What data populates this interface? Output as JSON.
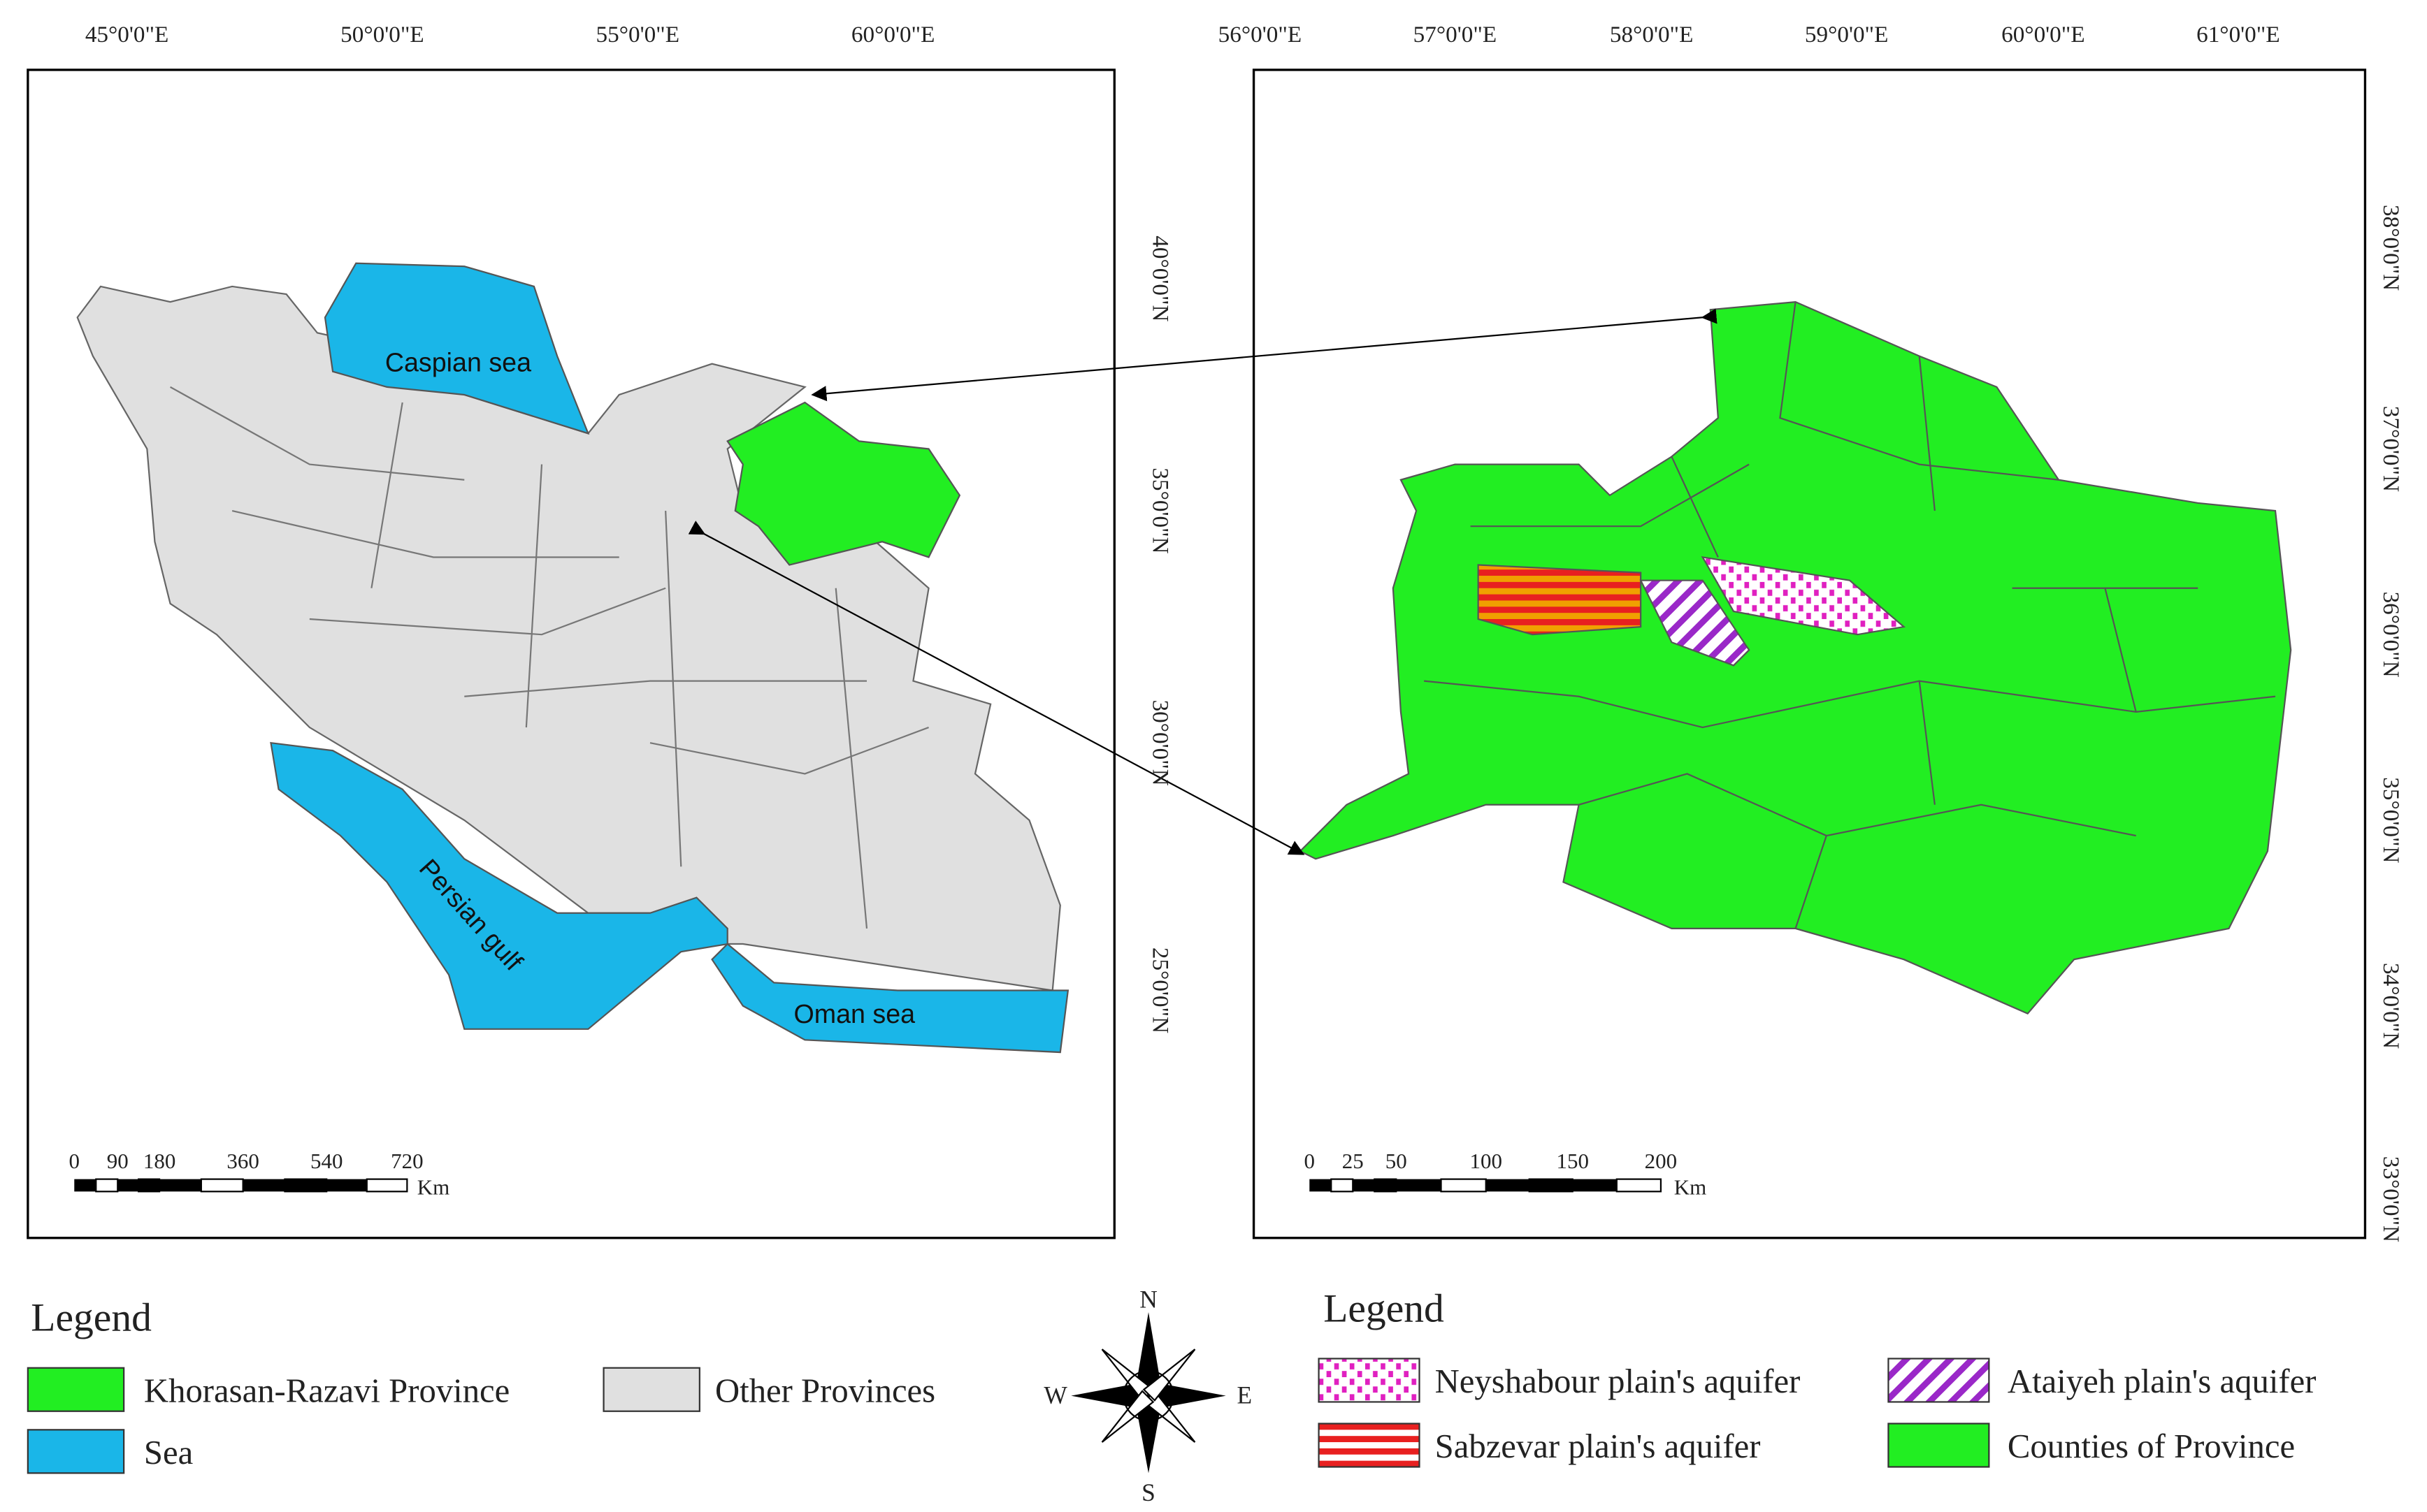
{
  "left_map": {
    "x_labels": [
      "45°0'0\"E",
      "50°0'0\"E",
      "55°0'0\"E",
      "60°0'0\"E"
    ],
    "y_labels": [
      "40°0'0\"N",
      "35°0'0\"N",
      "30°0'0\"N",
      "25°0'0\"N"
    ],
    "labels": {
      "caspian": "Caspian sea",
      "gulf": "Persian gulf",
      "oman": "Oman sea"
    },
    "scale": {
      "ticks": [
        "0",
        "90",
        "180",
        "360",
        "540",
        "720"
      ],
      "unit": "Km"
    }
  },
  "right_map": {
    "x_labels": [
      "56°0'0\"E",
      "57°0'0\"E",
      "58°0'0\"E",
      "59°0'0\"E",
      "60°0'0\"E",
      "61°0'0\"E"
    ],
    "y_labels": [
      "38°0'0\"N",
      "37°0'0\"N",
      "36°0'0\"N",
      "35°0'0\"N",
      "34°0'0\"N",
      "33°0'0\"N"
    ],
    "scale": {
      "ticks": [
        "0",
        "25",
        "50",
        "100",
        "150",
        "200"
      ],
      "unit": "Km"
    }
  },
  "legend_left": {
    "title": "Legend",
    "items": [
      "Khorasan-Razavi Province",
      "Other Provinces",
      "Sea"
    ]
  },
  "compass": {
    "n": "N",
    "s": "S",
    "e": "E",
    "w": "W"
  },
  "legend_right": {
    "title": "Legend",
    "items": [
      "Neyshabour plain's aquifer",
      "Ataiyeh plain's aquifer",
      "Sabzevar plain's aquifer",
      "Counties of Province"
    ]
  }
}
